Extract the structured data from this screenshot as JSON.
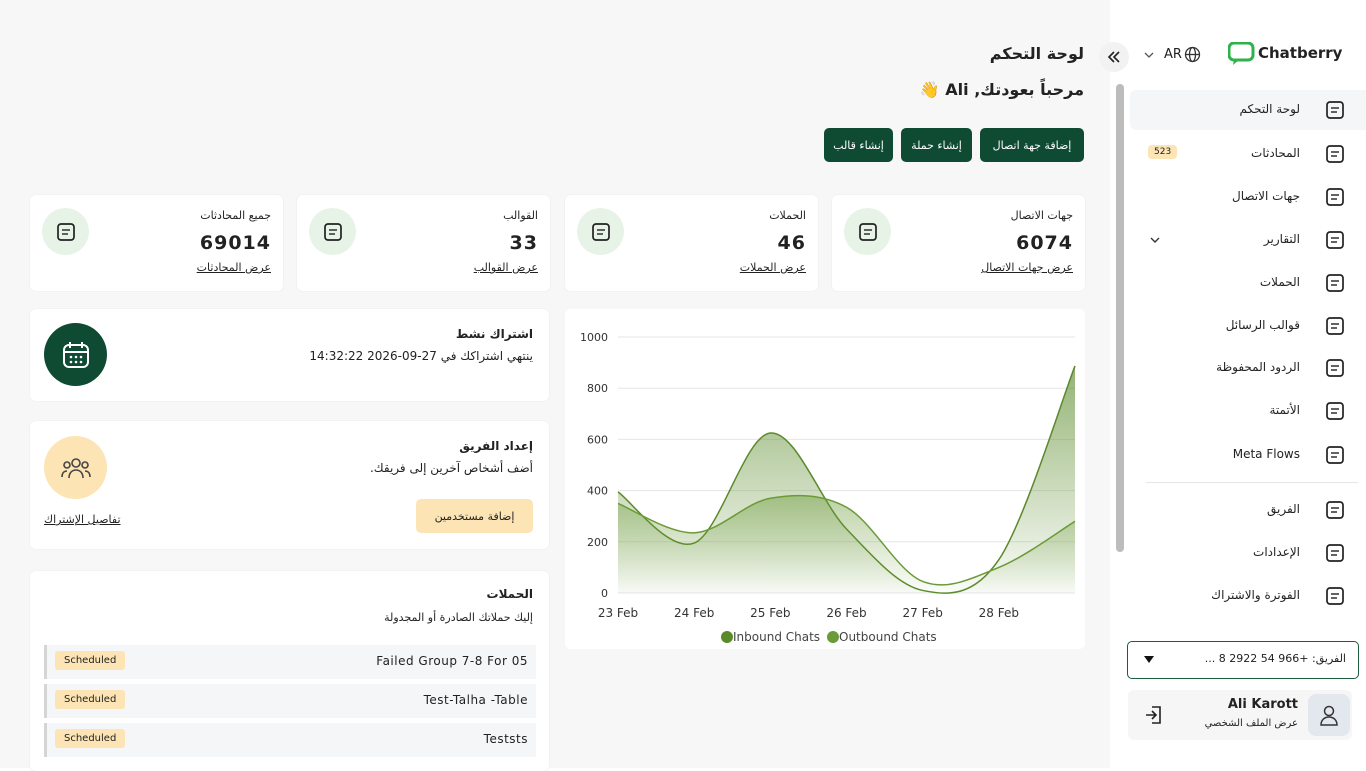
{
  "sidebar": {
    "logo": "Chatberry",
    "language": "AR",
    "nav": [
      {
        "label": "لوحة التحكم"
      },
      {
        "label": "المحادثات",
        "badge": 523
      },
      {
        "label": "جهات الاتصال"
      },
      {
        "label": "التقارير"
      },
      {
        "label": "الحملات"
      },
      {
        "label": "قوالب الرسائل"
      },
      {
        "label": "الردود المحفوظة"
      },
      {
        "label": "الأتمتة"
      },
      {
        "label": "Meta Flows"
      },
      {
        "label": "الفريق"
      },
      {
        "label": "الإعدادات"
      },
      {
        "label": "الفوترة والاشتراك"
      }
    ],
    "team_selector": "الفريق: +966 54 2922 8 ...",
    "user": {
      "name": "Ali Karott",
      "profile_link": "عرض الملف الشخصي"
    }
  },
  "header": {
    "title": "لوحة التحكم",
    "greeting": "مرحباً بعودتك, Ali 👋",
    "buttons": [
      "إضافة جهة اتصال",
      "إنشاء حملة",
      "إنشاء قالب"
    ]
  },
  "stats": [
    {
      "label": "جهات الاتصال",
      "value": 6074,
      "link": "عرض جهات الاتصال"
    },
    {
      "label": "الحملات",
      "value": 46,
      "link": "عرض الحملات"
    },
    {
      "label": "القوالب",
      "value": 33,
      "link": "عرض القوالب"
    },
    {
      "label": "جميع المحادثات",
      "value": 69014,
      "link": "عرض المحادثات"
    }
  ],
  "subscription": {
    "title": "اشتراك نشط",
    "text": "ينتهي اشتراكك في 27-09-2026 14:32:22"
  },
  "team_setup": {
    "title": "إعداد الفريق",
    "text": "أضف أشخاص آخرين إلى فريقك.",
    "button": "إضافة مستخدمين",
    "link": "تفاصيل الإشتراك"
  },
  "campaigns": {
    "title": "الحملات",
    "subtitle": "إليك حملاتك الصادرة أو المجدولة",
    "rows": [
      {
        "name": "Failed Group 7-8 For 05",
        "status": "Scheduled"
      },
      {
        "name": "Test-Talha -Table",
        "status": "Scheduled"
      },
      {
        "name": "Teststs",
        "status": "Scheduled"
      }
    ]
  },
  "chart_data": {
    "type": "area",
    "categories": [
      "23 Feb",
      "24 Feb",
      "25 Feb",
      "26 Feb",
      "27 Feb",
      "28 Feb",
      null
    ],
    "series": [
      {
        "name": "Inbound Chats",
        "color": "#5a8a2a",
        "values": [
          395,
          195,
          625,
          250,
          10,
          130,
          887
        ]
      },
      {
        "name": "Outbound Chats",
        "color": "#6b9a38",
        "values": [
          350,
          235,
          370,
          335,
          45,
          100,
          280
        ]
      }
    ],
    "ylim": [
      0,
      1000
    ],
    "yticks": [
      0,
      200,
      400,
      600,
      800,
      1000
    ],
    "grid": true
  }
}
